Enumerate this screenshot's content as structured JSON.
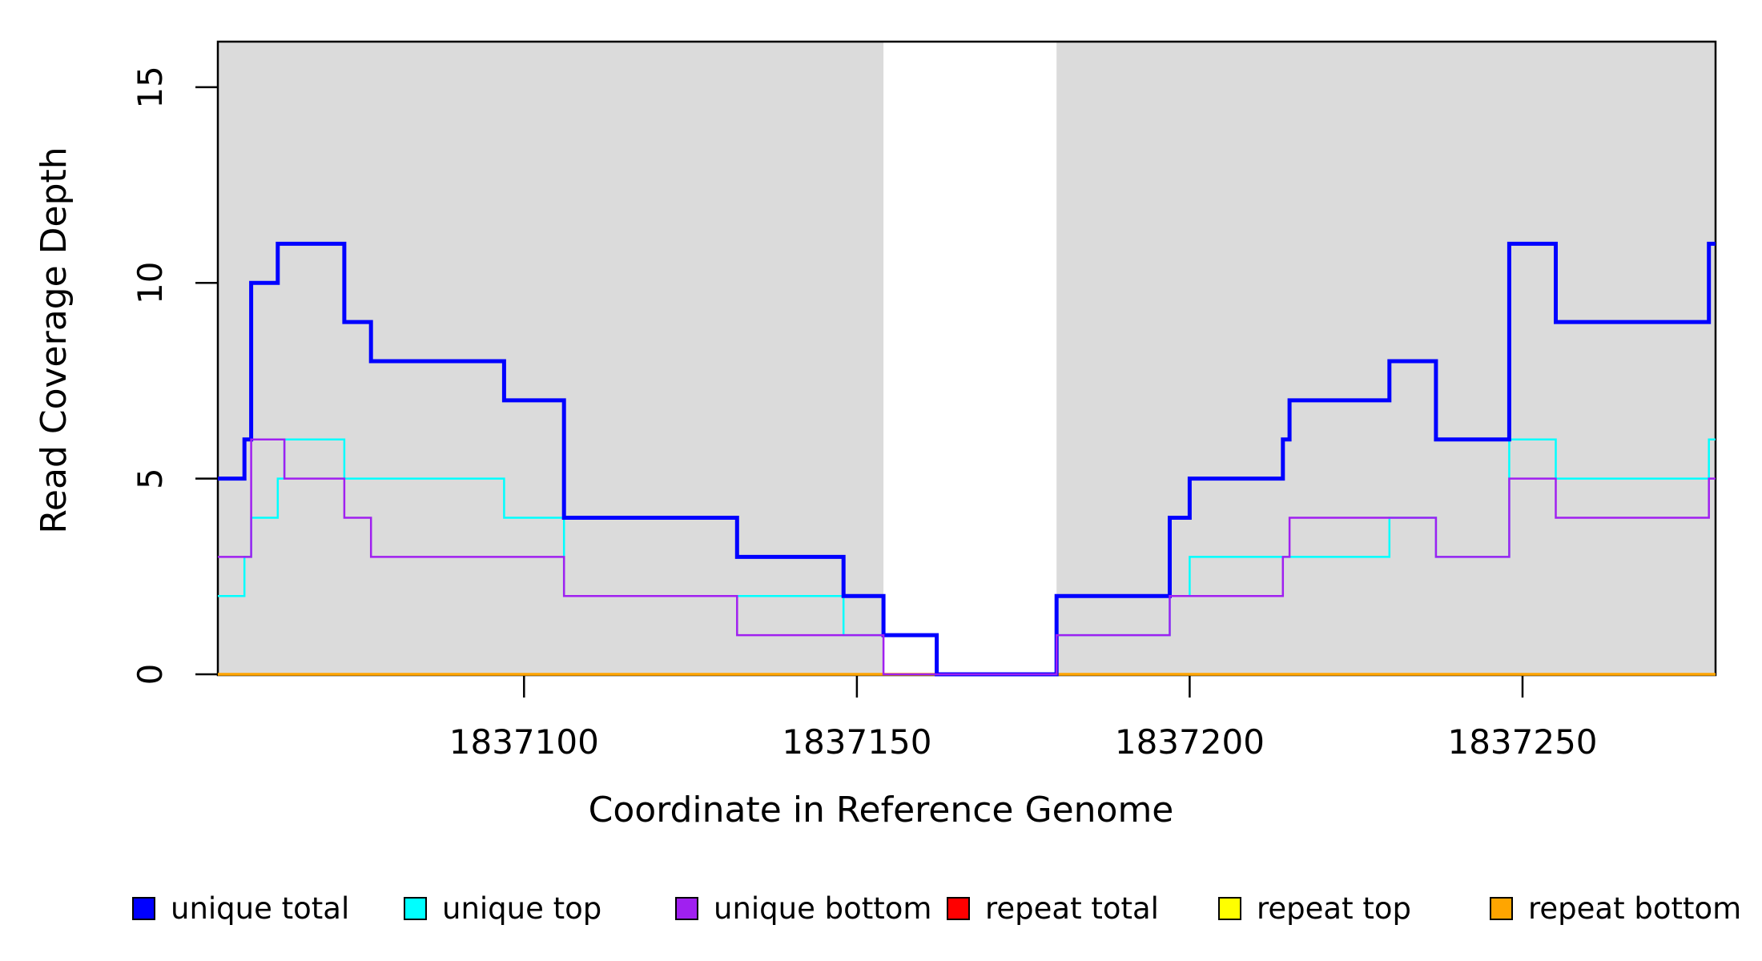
{
  "figure": {
    "kind": "read-coverage-step-plot",
    "background_color": "#ffffff"
  },
  "chart_data": {
    "type": "line",
    "subtype": "step",
    "title": "",
    "xlabel": "Coordinate in Reference Genome",
    "ylabel": "Read Coverage Depth",
    "xlim": [
      1837054,
      1837279
    ],
    "ylim": [
      0,
      16.2
    ],
    "x_ticks": [
      1837100,
      1837150,
      1837200,
      1837250
    ],
    "y_ticks": [
      0,
      5,
      10,
      15
    ],
    "grid": false,
    "legend_position": "bottom",
    "plot_background": "#ffffff",
    "shaded_region_color": "#dbdbdb",
    "shaded_regions": [
      {
        "from": 1837054,
        "to": 1837154
      },
      {
        "from": 1837180,
        "to": 1837279
      }
    ],
    "draw_order": [
      "repeat total",
      "repeat top",
      "repeat bottom",
      "unique top",
      "unique total",
      "unique bottom"
    ],
    "series": [
      {
        "name": "unique total",
        "color": "#0000ff",
        "line_width": 5,
        "points": [
          [
            1837054,
            5
          ],
          [
            1837058,
            6
          ],
          [
            1837059,
            10
          ],
          [
            1837063,
            11
          ],
          [
            1837073,
            9
          ],
          [
            1837077,
            8
          ],
          [
            1837097,
            7
          ],
          [
            1837106,
            4
          ],
          [
            1837132,
            3
          ],
          [
            1837148,
            2
          ],
          [
            1837154,
            1
          ],
          [
            1837162,
            0
          ],
          [
            1837180,
            2
          ],
          [
            1837197,
            4
          ],
          [
            1837200,
            5
          ],
          [
            1837214,
            6
          ],
          [
            1837215,
            7
          ],
          [
            1837230,
            8
          ],
          [
            1837237,
            6
          ],
          [
            1837248,
            11
          ],
          [
            1837255,
            9
          ],
          [
            1837278,
            11
          ]
        ]
      },
      {
        "name": "unique top",
        "color": "#00ffff",
        "line_width": 2.5,
        "points": [
          [
            1837054,
            2
          ],
          [
            1837058,
            3
          ],
          [
            1837059,
            4
          ],
          [
            1837063,
            5
          ],
          [
            1837064,
            6
          ],
          [
            1837073,
            5
          ],
          [
            1837097,
            4
          ],
          [
            1837106,
            2
          ],
          [
            1837148,
            1
          ],
          [
            1837162,
            0
          ],
          [
            1837180,
            1
          ],
          [
            1837197,
            2
          ],
          [
            1837200,
            3
          ],
          [
            1837230,
            4
          ],
          [
            1837237,
            3
          ],
          [
            1837248,
            6
          ],
          [
            1837255,
            5
          ],
          [
            1837278,
            6
          ]
        ]
      },
      {
        "name": "unique bottom",
        "color": "#a020f0",
        "line_width": 2.5,
        "points": [
          [
            1837054,
            3
          ],
          [
            1837059,
            6
          ],
          [
            1837064,
            5
          ],
          [
            1837073,
            4
          ],
          [
            1837077,
            3
          ],
          [
            1837106,
            2
          ],
          [
            1837132,
            1
          ],
          [
            1837154,
            0
          ],
          [
            1837180,
            1
          ],
          [
            1837197,
            2
          ],
          [
            1837214,
            3
          ],
          [
            1837215,
            4
          ],
          [
            1837237,
            3
          ],
          [
            1837248,
            5
          ],
          [
            1837255,
            4
          ],
          [
            1837278,
            5
          ]
        ]
      },
      {
        "name": "repeat total",
        "color": "#ff0000",
        "line_width": 2.5,
        "points": [
          [
            1837054,
            0
          ]
        ]
      },
      {
        "name": "repeat top",
        "color": "#ffff00",
        "line_width": 2.5,
        "points": [
          [
            1837054,
            0
          ]
        ]
      },
      {
        "name": "repeat bottom",
        "color": "#ffa500",
        "line_width": 3.5,
        "points": [
          [
            1837054,
            0
          ]
        ]
      }
    ]
  },
  "legend": {
    "items": [
      {
        "label": "unique total",
        "color": "#0000ff"
      },
      {
        "label": "unique top",
        "color": "#00ffff"
      },
      {
        "label": "unique bottom",
        "color": "#a020f0"
      },
      {
        "label": "repeat total",
        "color": "#ff0000"
      },
      {
        "label": "repeat top",
        "color": "#ffff00"
      },
      {
        "label": "repeat bottom",
        "color": "#ffa500"
      }
    ]
  },
  "axes": {
    "x_title": "Coordinate in Reference Genome",
    "y_title": "Read Coverage Depth",
    "x_tick_labels": [
      "1837100",
      "1837150",
      "1837200",
      "1837250"
    ],
    "y_tick_labels": [
      "0",
      "5",
      "10",
      "15"
    ]
  }
}
